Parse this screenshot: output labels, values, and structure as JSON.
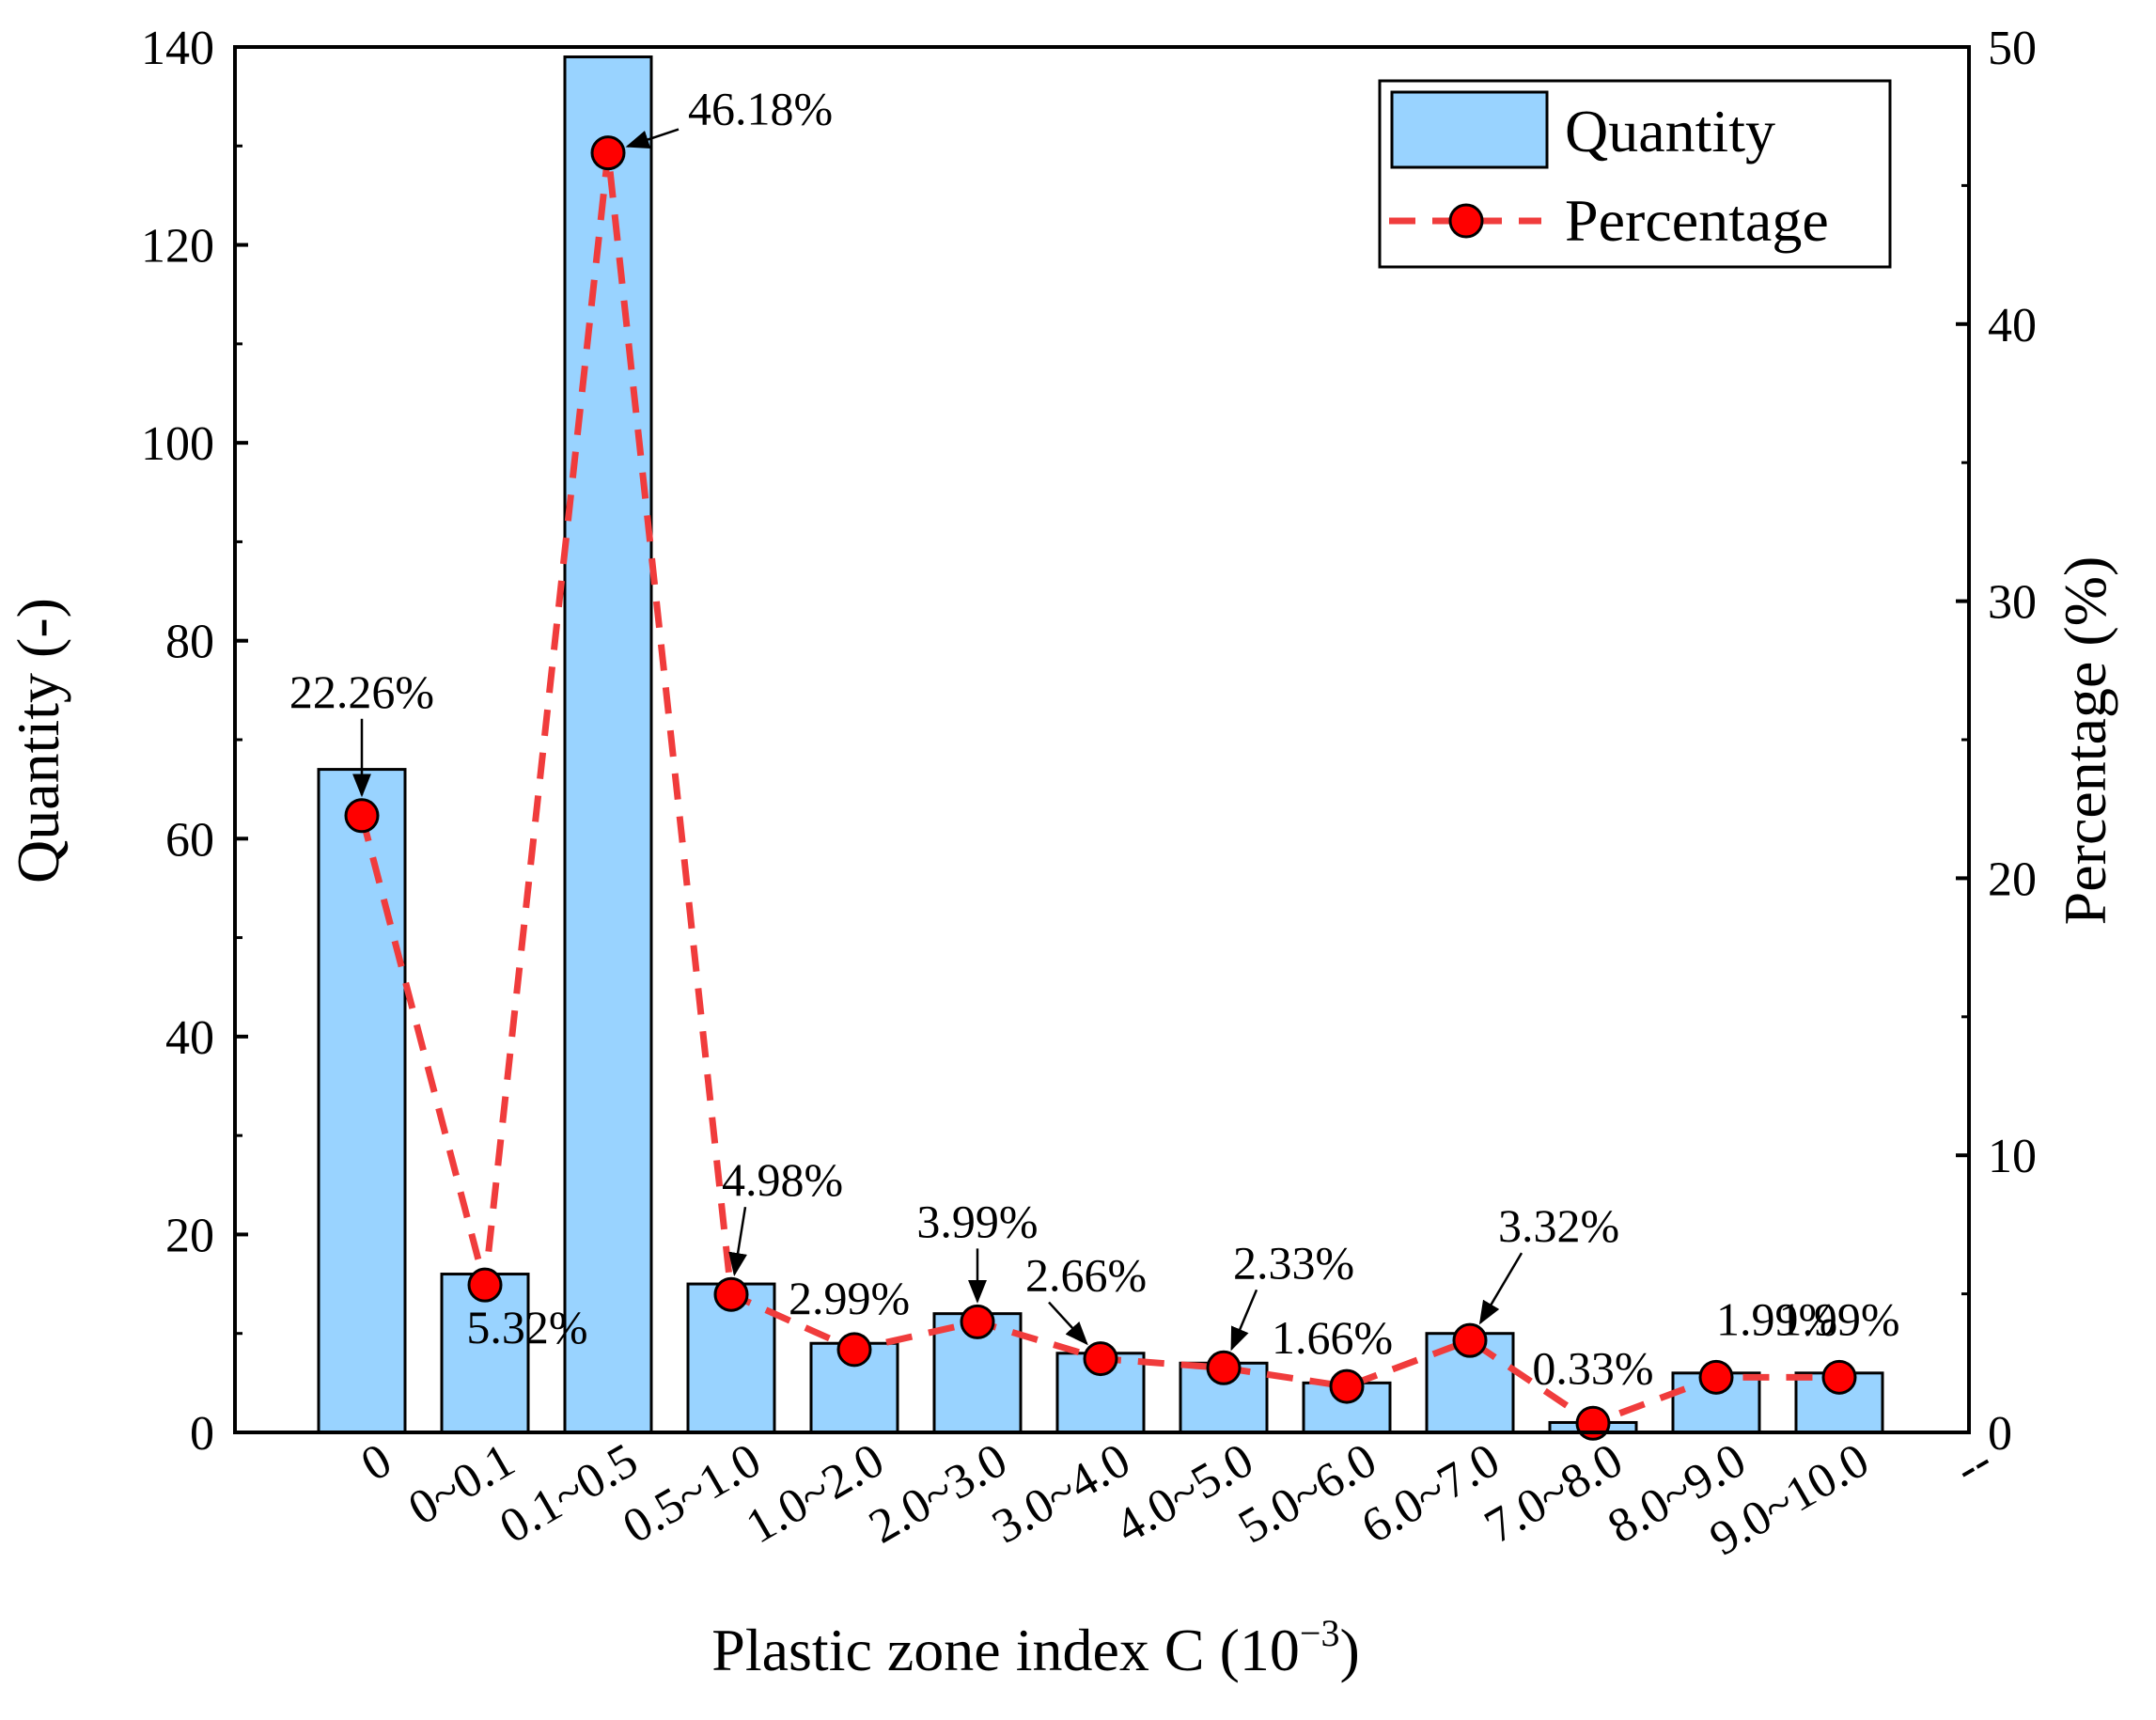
{
  "chart_data": {
    "type": "bar",
    "xlabel": "Plastic zone index C (10",
    "xlabel_exponent": "−3",
    "xlabel_close": ")",
    "ylabel": "Quantity (-)",
    "y2label": "Percentage (%)",
    "categories": [
      "0",
      "0~0.1",
      "0.1~0.5",
      "0.5~1.0",
      "1.0~2.0",
      "2.0~3.0",
      "3.0~4.0",
      "4.0~5.0",
      "5.0~6.0",
      "6.0~7.0",
      "7.0~8.0",
      "8.0~9.0",
      "9.0~10.0"
    ],
    "extra_tick_label": "--",
    "series": [
      {
        "name": "Quantity",
        "type": "bar",
        "axis": "left",
        "color": "#99d3ff",
        "values": [
          67,
          16,
          139,
          15,
          9,
          12,
          8,
          7,
          5,
          10,
          1,
          6,
          6
        ]
      },
      {
        "name": "Percentage",
        "type": "line",
        "axis": "right",
        "color": "#f03c3c",
        "marker_color": "#ff0000",
        "values": [
          22.26,
          5.32,
          46.18,
          4.98,
          2.99,
          3.99,
          2.66,
          2.33,
          1.66,
          3.32,
          0.33,
          1.99,
          1.99
        ],
        "labels": [
          "22.26%",
          "5.32%",
          "46.18%",
          "4.98%",
          "2.99%",
          "3.99%",
          "2.66%",
          "2.33%",
          "1.66%",
          "3.32%",
          "0.33%",
          "1.99%",
          "1.99%"
        ]
      }
    ],
    "ylim": [
      0,
      140
    ],
    "y_ticks": [
      0,
      20,
      40,
      60,
      80,
      100,
      120,
      140
    ],
    "y2lim": [
      0,
      50
    ],
    "y2_ticks": [
      0,
      10,
      20,
      30,
      40,
      50
    ],
    "grid": false,
    "legend": {
      "position": "top-right",
      "entries": [
        "Quantity",
        "Percentage"
      ]
    }
  }
}
